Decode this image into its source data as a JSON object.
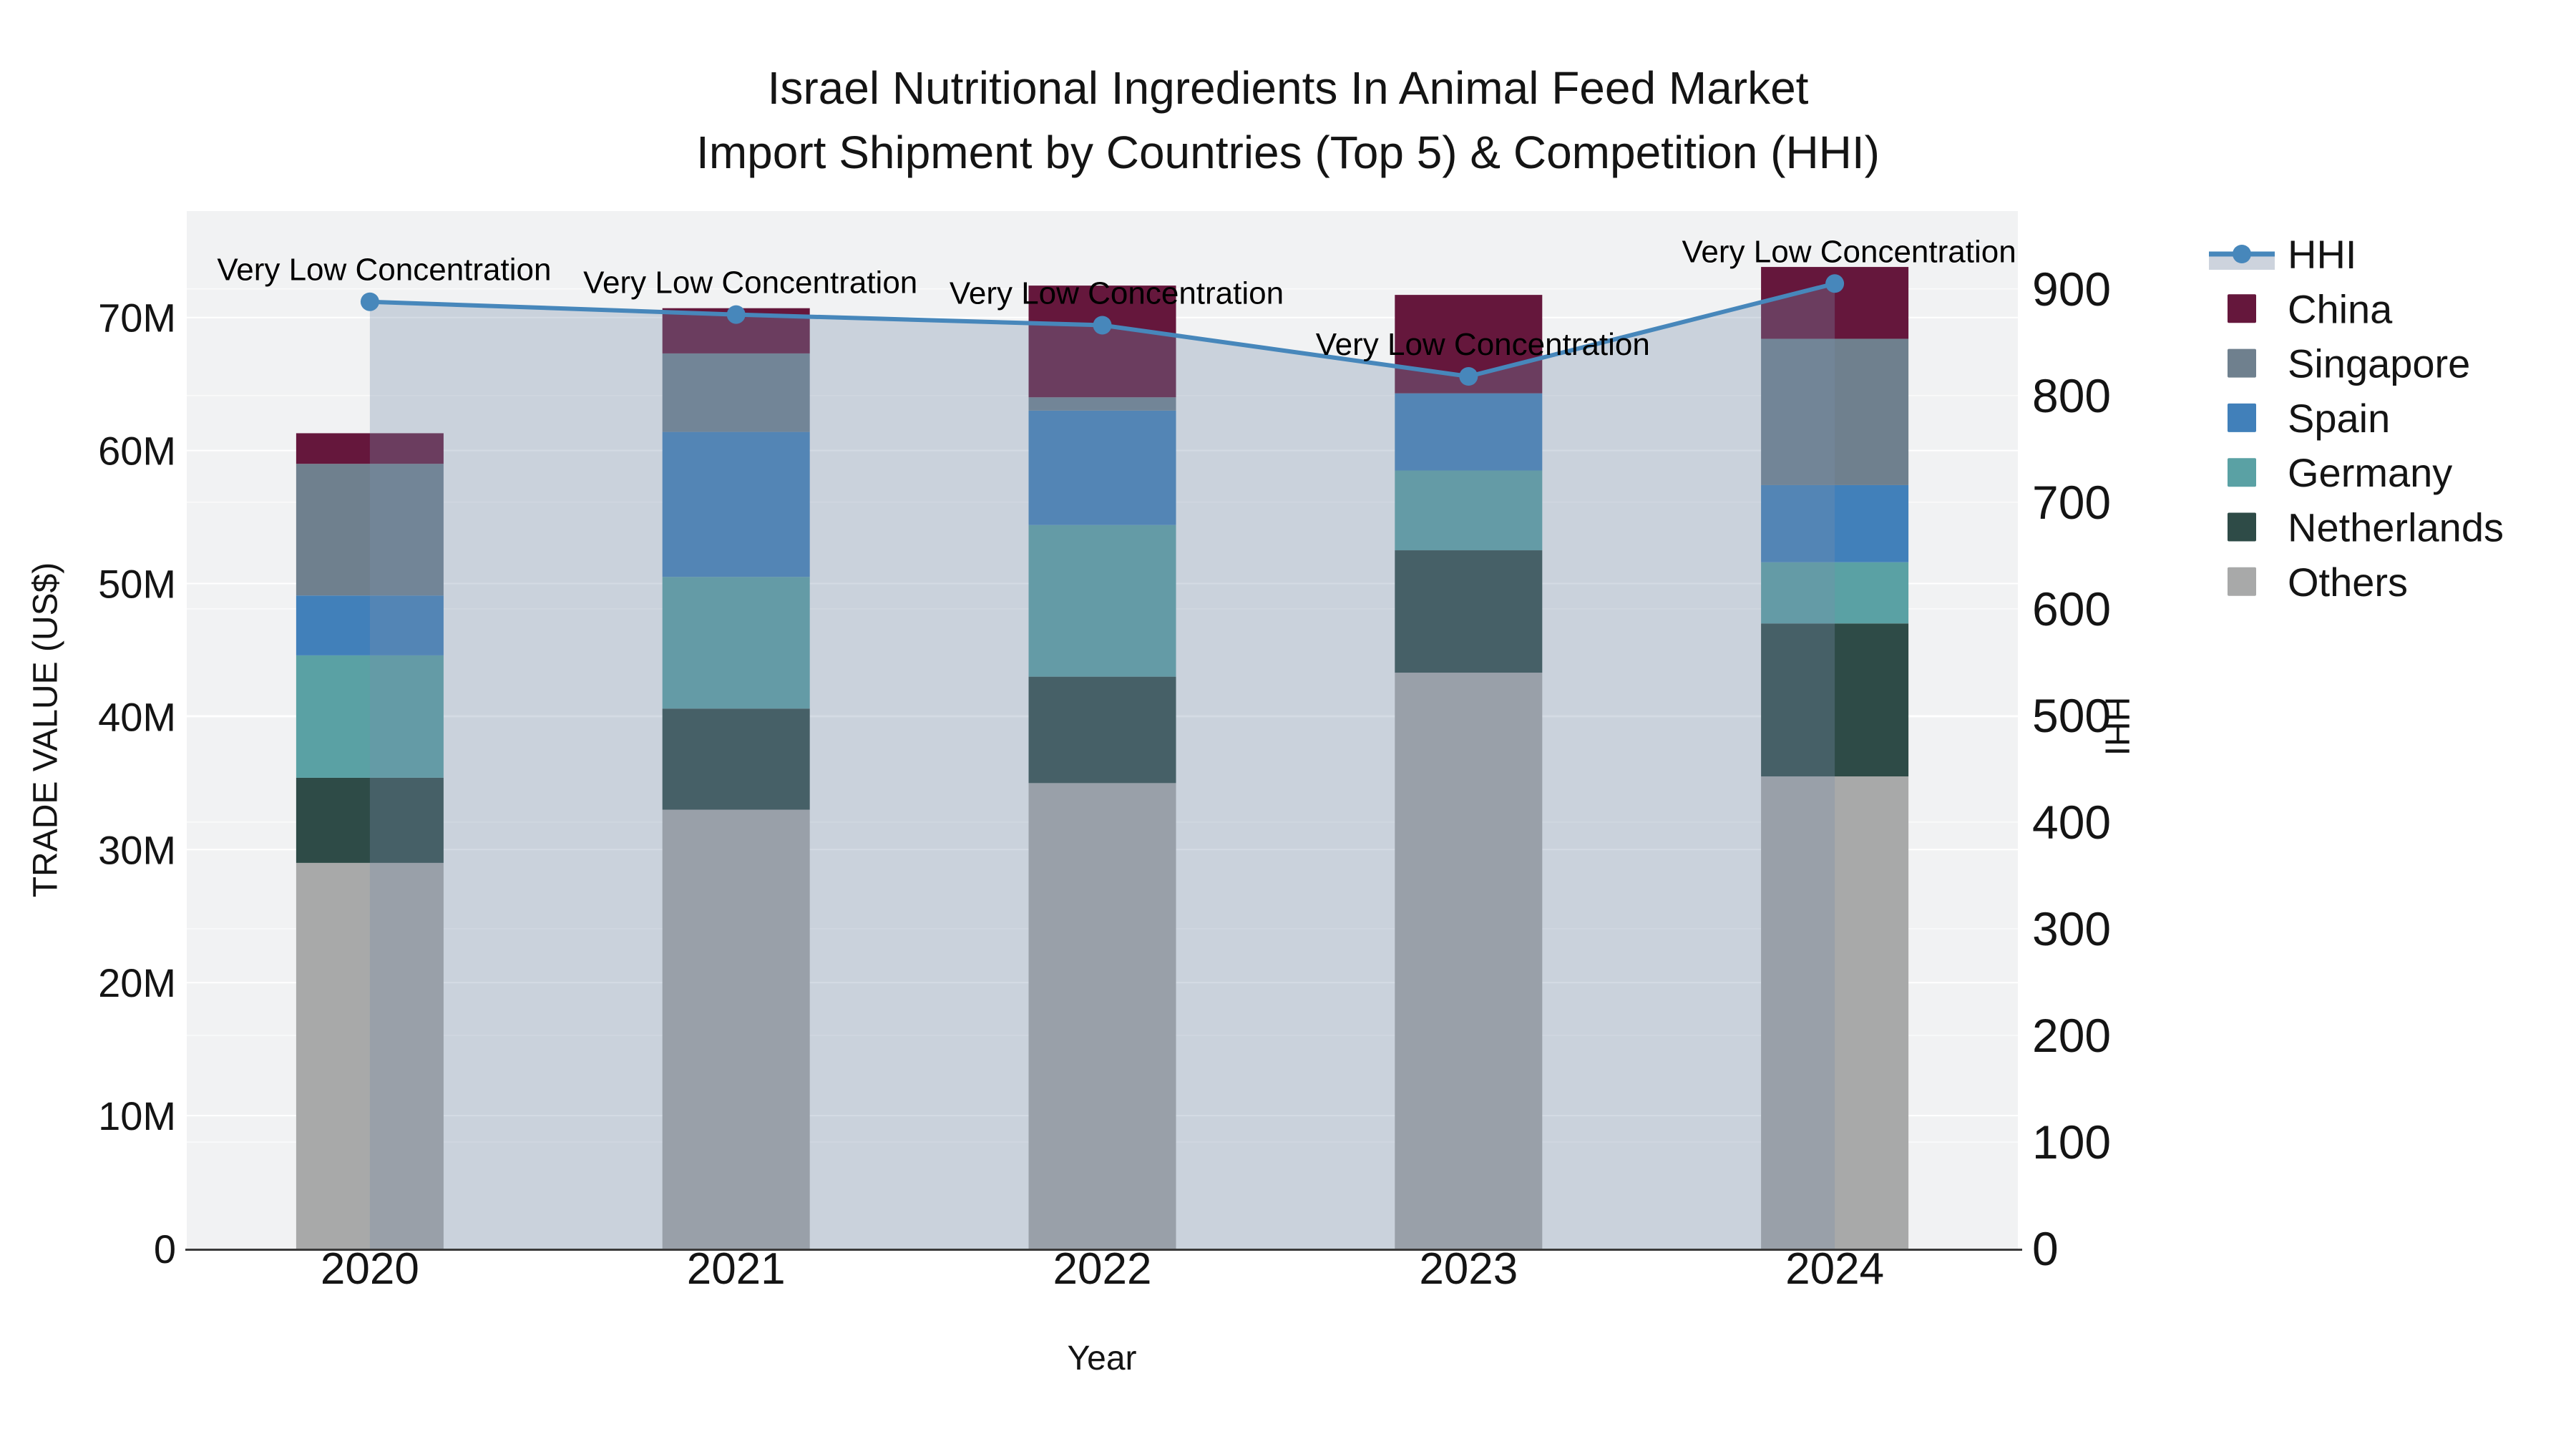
{
  "title": {
    "line1": "Israel Nutritional Ingredients In Animal Feed Market",
    "line2": "Import Shipment by Countries (Top 5) & Competition (HHI)"
  },
  "colors": {
    "plot_bg": "#F1F2F3",
    "grid": "#FFFFFF",
    "axis_line": "#3A3A3A",
    "text": "#141414",
    "hhi_line": "#4787BB",
    "hhi_fill": "rgba(122,142,170,0.32)",
    "legend_fill_sample": "#CDD3DD"
  },
  "legend": {
    "items": [
      {
        "label": "HHI",
        "type": "line"
      },
      {
        "label": "China",
        "type": "swatch"
      },
      {
        "label": "Singapore",
        "type": "swatch"
      },
      {
        "label": "Spain",
        "type": "swatch"
      },
      {
        "label": "Germany",
        "type": "swatch"
      },
      {
        "label": "Netherlands",
        "type": "swatch"
      },
      {
        "label": "Others",
        "type": "swatch"
      }
    ]
  },
  "chart_data": {
    "type": "bar",
    "subtype": "stacked-bar-with-line-overlay",
    "unit": "million US$",
    "categories": [
      "2020",
      "2021",
      "2022",
      "2023",
      "2024"
    ],
    "stack_order_bottom_to_top": [
      "Others",
      "Netherlands",
      "Germany",
      "Spain",
      "Singapore",
      "China"
    ],
    "series": [
      {
        "name": "China",
        "color": "#65173C",
        "values": [
          2.3,
          3.4,
          8.4,
          7.4,
          5.4
        ]
      },
      {
        "name": "Singapore",
        "color": "#6F808E",
        "values": [
          9.9,
          5.9,
          1.0,
          0.0,
          11.0
        ]
      },
      {
        "name": "Spain",
        "color": "#4180BA",
        "values": [
          4.5,
          10.9,
          8.6,
          5.8,
          5.8
        ]
      },
      {
        "name": "Germany",
        "color": "#5AA1A4",
        "values": [
          9.2,
          9.9,
          11.4,
          6.0,
          4.6
        ]
      },
      {
        "name": "Netherlands",
        "color": "#2E4B47",
        "values": [
          6.4,
          7.6,
          8.0,
          9.2,
          11.5
        ]
      },
      {
        "name": "Others",
        "color": "#A8A9A9",
        "values": [
          29.0,
          33.0,
          35.0,
          43.3,
          35.5
        ]
      }
    ],
    "bar_totals": [
      61.3,
      70.7,
      72.4,
      71.7,
      73.8
    ],
    "line": {
      "name": "HHI",
      "color": "#4787BB",
      "fill_color": "rgba(122,142,170,0.32)",
      "values": [
        888,
        876,
        866,
        818,
        905
      ]
    },
    "annotations": [
      "Very Low Concentration",
      "Very Low Concentration",
      "Very Low Concentration",
      "Very Low Concentration",
      "Very Low Concentration"
    ],
    "y_left": {
      "label": "TRADE VALUE (US$)",
      "tick_labels": [
        "0",
        "10M",
        "20M",
        "30M",
        "40M",
        "50M",
        "60M",
        "70M"
      ],
      "tick_values": [
        0,
        10,
        20,
        30,
        40,
        50,
        60,
        70
      ],
      "range": [
        0,
        78
      ]
    },
    "y_right": {
      "label": "HHI",
      "tick_labels": [
        "0",
        "100",
        "200",
        "300",
        "400",
        "500",
        "600",
        "700",
        "800",
        "900"
      ],
      "tick_values": [
        0,
        100,
        200,
        300,
        400,
        500,
        600,
        700,
        800,
        900
      ],
      "range": [
        0,
        973
      ]
    },
    "x": {
      "label": "Year"
    },
    "grid": true,
    "legend_position": "right"
  }
}
